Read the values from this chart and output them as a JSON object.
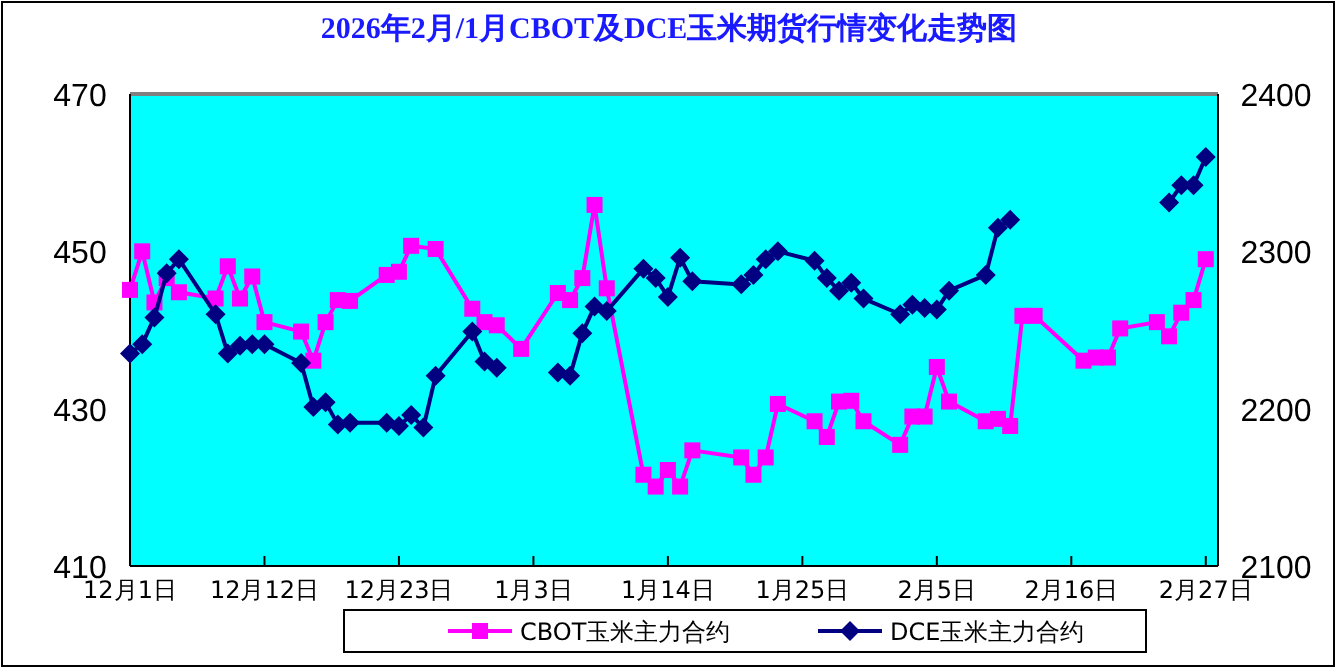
{
  "chart_data": {
    "type": "line",
    "title": "2026年2月/1月CBOT及DCE玉米期货行情变化走势图",
    "xlim": [
      "2025-12-01",
      "2026-02-28"
    ],
    "xticks": [
      {
        "value": "2025-12-01",
        "label": "12月1日"
      },
      {
        "value": "2025-12-12",
        "label": "12月12日"
      },
      {
        "value": "2025-12-23",
        "label": "12月23日"
      },
      {
        "value": "2026-01-03",
        "label": "1月3日"
      },
      {
        "value": "2026-01-14",
        "label": "1月14日"
      },
      {
        "value": "2026-01-25",
        "label": "1月25日"
      },
      {
        "value": "2026-02-05",
        "label": "2月5日"
      },
      {
        "value": "2026-02-16",
        "label": "2月16日"
      },
      {
        "value": "2026-02-27",
        "label": "2月27日"
      }
    ],
    "ylim": [
      410,
      470
    ],
    "yticks": [
      410,
      430,
      450,
      470
    ],
    "y2lim": [
      2100,
      2400
    ],
    "y2ticks": [
      2100,
      2200,
      2300,
      2400
    ],
    "legend": "bottom",
    "grid": false,
    "series": [
      {
        "name": "CBOT玉米主力合约",
        "color": "#ff00ff",
        "marker": "square",
        "x": [
          "2025-12-01",
          "2025-12-02",
          "2025-12-03",
          "2025-12-04",
          "2025-12-05",
          "2025-12-08",
          "2025-12-09",
          "2025-12-10",
          "2025-12-11",
          "2025-12-12",
          "2025-12-15",
          "2025-12-16",
          "2025-12-17",
          "2025-12-18",
          "2025-12-19",
          "2025-12-22",
          "2025-12-23",
          "2025-12-24",
          "2025-12-26",
          "2025-12-29",
          "2025-12-30",
          "2025-12-31",
          "2026-01-02",
          "2026-01-05",
          "2026-01-06",
          "2026-01-07",
          "2026-01-08",
          "2026-01-09",
          "2026-01-12",
          "2026-01-13",
          "2026-01-14",
          "2026-01-15",
          "2026-01-16",
          "2026-01-20",
          "2026-01-21",
          "2026-01-22",
          "2026-01-23",
          "2026-01-26",
          "2026-01-27",
          "2026-01-28",
          "2026-01-29",
          "2026-01-30",
          "2026-02-02",
          "2026-02-03",
          "2026-02-04",
          "2026-02-05",
          "2026-02-06",
          "2026-02-09",
          "2026-02-10",
          "2026-02-11",
          "2026-02-12",
          "2026-02-13",
          "2026-02-17",
          "2026-02-18",
          "2026-02-19",
          "2026-02-20",
          "2026-02-23",
          "2026-02-24",
          "2026-02-25",
          "2026-02-26",
          "2026-02-27"
        ],
        "values": [
          445.1,
          450,
          443.5,
          446.6,
          444.8,
          444,
          448.1,
          444,
          446.8,
          441,
          439.8,
          436.1,
          441,
          443.8,
          443.7,
          447,
          447.4,
          450.7,
          450.3,
          442.7,
          441,
          440.6,
          437.6,
          444.7,
          443.8,
          446.6,
          455.9,
          445.3,
          421.6,
          420.1,
          422.2,
          420.1,
          424.7,
          423.8,
          421.6,
          423.8,
          430.6,
          428.4,
          426.4,
          430.9,
          431,
          428.4,
          425.4,
          429,
          429,
          435.3,
          430.9,
          428.4,
          428.7,
          427.8,
          441.8,
          441.8,
          436.1,
          436.5,
          436.5,
          440.2,
          441,
          439.2,
          442.2,
          443.8,
          449
        ]
      },
      {
        "name": "DCE玉米主力合约",
        "color": "#000080",
        "marker": "diamond",
        "axis": "y2",
        "x": [
          "2025-12-01",
          "2025-12-02",
          "2025-12-03",
          "2025-12-04",
          "2025-12-05",
          "2025-12-08",
          "2025-12-09",
          "2025-12-10",
          "2025-12-11",
          "2025-12-12",
          "2025-12-15",
          "2025-12-16",
          "2025-12-17",
          "2025-12-18",
          "2025-12-19",
          "2025-12-22",
          "2025-12-23",
          "2025-12-24",
          "2025-12-25",
          "2025-12-26",
          "2025-12-29",
          "2025-12-30",
          "2025-12-31",
          "2026-01-02",
          "2026-01-05",
          "2026-01-06",
          "2026-01-07",
          "2026-01-08",
          "2026-01-09",
          "2026-01-12",
          "2026-01-13",
          "2026-01-14",
          "2026-01-15",
          "2026-01-16",
          "2026-01-20",
          "2026-01-21",
          "2026-01-22",
          "2026-01-23",
          "2026-01-26",
          "2026-01-27",
          "2026-01-28",
          "2026-01-29",
          "2026-01-30",
          "2026-02-02",
          "2026-02-03",
          "2026-02-04",
          "2026-02-05",
          "2026-02-06",
          "2026-02-09",
          "2026-02-10",
          "2026-02-11",
          "2026-02-16",
          "2026-02-24",
          "2026-02-25",
          "2026-02-26",
          "2026-02-27"
        ],
        "values": [
          2235,
          2241,
          2258,
          2286,
          2295,
          2260,
          2235,
          2240,
          2241,
          2241,
          2229,
          2201,
          2204,
          2190,
          2191,
          2191,
          2189,
          2196,
          2188,
          2221,
          2249,
          2230,
          2226,
          null,
          2223,
          2221,
          2248,
          2265,
          2262,
          2289,
          2283,
          2271,
          2296,
          2281,
          2279,
          2285,
          2295,
          2300,
          2294,
          2283,
          2275,
          2280,
          2270,
          2260,
          2266,
          2264,
          2263,
          2275,
          2285,
          2315,
          2320,
          null,
          2331,
          2342,
          2342,
          2360
        ]
      }
    ]
  }
}
